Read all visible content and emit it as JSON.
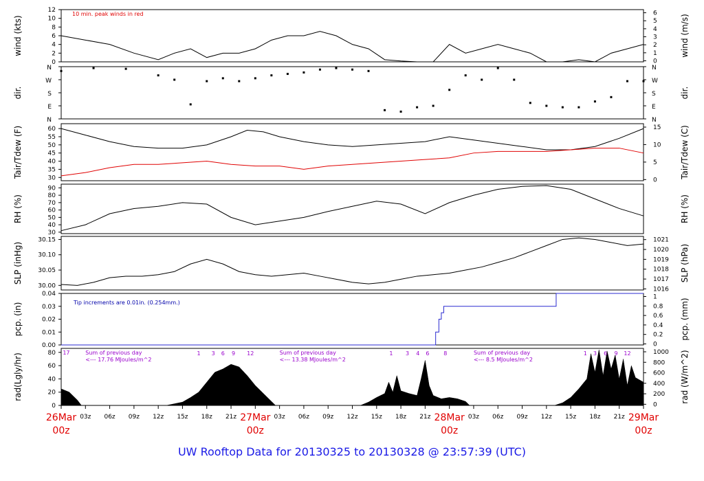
{
  "title": "UW Rooftop Data for 20130325  to  20130328 @ 23:57:39  (UTC)",
  "colors": {
    "day_label": "#e00000",
    "title": "#1a1ae6",
    "annotation": "#9900cc",
    "rain": "#2a2ad0",
    "dew": "#e00000"
  },
  "chart_data": [
    {
      "type": "line",
      "ylabel": "wind (kts)",
      "ylabel_right": "wind (m/s)",
      "note": "10 min. peak winds in red",
      "yticks": [
        0,
        2,
        4,
        6,
        8,
        10,
        12
      ],
      "yticks_right": [
        0,
        1,
        2,
        3,
        4,
        5,
        6
      ],
      "ylim": [
        0,
        12
      ],
      "series": [
        {
          "x": [
            0,
            3,
            6,
            9,
            12,
            14,
            16,
            18,
            20,
            22,
            24,
            26,
            28,
            30,
            32,
            34,
            36,
            38,
            40,
            42,
            44,
            46,
            48,
            50,
            52,
            54,
            56,
            58,
            60,
            62,
            64,
            66,
            68,
            70,
            72
          ],
          "values": [
            6,
            5,
            4,
            2,
            0.5,
            2,
            3,
            1,
            2,
            2,
            3,
            5,
            6,
            6,
            7,
            6,
            4,
            3,
            0.5,
            0.2,
            0,
            0,
            4,
            2,
            3,
            4,
            3,
            2,
            0,
            0,
            0.5,
            0,
            2,
            3,
            4
          ]
        }
      ]
    },
    {
      "type": "scatter",
      "ylabel": "dir.",
      "ylabel_right": "dir.",
      "yticks": [
        "N",
        "E",
        "S",
        "W",
        "N"
      ],
      "ylim": [
        0,
        360
      ],
      "series": [
        {
          "x": [
            0,
            4,
            8,
            12,
            14,
            16,
            18,
            20,
            22,
            24,
            26,
            28,
            30,
            32,
            34,
            36,
            38,
            40,
            42,
            44,
            46,
            48,
            50,
            52,
            54,
            56,
            58,
            60,
            62,
            64,
            66,
            68,
            70,
            72
          ],
          "values": [
            330,
            350,
            345,
            300,
            270,
            100,
            260,
            280,
            260,
            280,
            300,
            310,
            320,
            340,
            350,
            340,
            330,
            60,
            50,
            80,
            90,
            200,
            300,
            270,
            350,
            270,
            110,
            90,
            80,
            80,
            120,
            150,
            260,
            260
          ]
        }
      ]
    },
    {
      "type": "line",
      "ylabel": "Tair/Tdew (F)",
      "ylabel_right": "Tair/Tdew (C)",
      "yticks": [
        30,
        35,
        40,
        45,
        50,
        55,
        60
      ],
      "yticks_right": [
        0,
        5,
        10,
        15
      ],
      "ylim": [
        28,
        63
      ],
      "series": [
        {
          "name": "Tair",
          "x": [
            0,
            3,
            6,
            9,
            12,
            15,
            18,
            21,
            23,
            25,
            27,
            30,
            33,
            36,
            39,
            42,
            45,
            48,
            51,
            54,
            57,
            60,
            63,
            66,
            69,
            72
          ],
          "values": [
            60,
            56,
            52,
            49,
            48,
            48,
            50,
            55,
            59,
            58,
            55,
            52,
            50,
            49,
            50,
            51,
            52,
            55,
            53,
            51,
            49,
            47,
            47,
            49,
            54,
            60
          ]
        },
        {
          "name": "Tdew",
          "x": [
            0,
            3,
            6,
            9,
            12,
            15,
            18,
            21,
            24,
            27,
            30,
            33,
            36,
            39,
            42,
            45,
            48,
            51,
            54,
            57,
            60,
            63,
            66,
            69,
            72
          ],
          "values": [
            31,
            33,
            36,
            38,
            38,
            39,
            40,
            38,
            37,
            37,
            35,
            37,
            38,
            39,
            40,
            41,
            42,
            45,
            46,
            46,
            46,
            47,
            48,
            48,
            45
          ]
        }
      ]
    },
    {
      "type": "line",
      "ylabel": "RH (%)",
      "ylabel_right": "RH (%)",
      "yticks": [
        30,
        40,
        50,
        60,
        70,
        80,
        90
      ],
      "ylim": [
        28,
        95
      ],
      "series": [
        {
          "x": [
            0,
            3,
            6,
            9,
            12,
            15,
            18,
            21,
            24,
            27,
            30,
            33,
            36,
            39,
            42,
            45,
            48,
            51,
            54,
            57,
            60,
            63,
            66,
            69,
            72
          ],
          "values": [
            32,
            40,
            55,
            62,
            65,
            70,
            68,
            50,
            40,
            45,
            50,
            58,
            65,
            72,
            68,
            55,
            70,
            80,
            88,
            92,
            93,
            88,
            75,
            62,
            52
          ]
        }
      ]
    },
    {
      "type": "line",
      "ylabel": "SLP (inHg)",
      "ylabel_right": "SLP (hPa)",
      "yticks": [
        30.0,
        30.05,
        30.1,
        30.15
      ],
      "ytick_labels": [
        "30.00",
        "30.05",
        "30.10",
        "30.15"
      ],
      "yticks_right": [
        "1016",
        "1017",
        "1018",
        "1019",
        "1020",
        "1021"
      ],
      "ylim": [
        29.985,
        30.16
      ],
      "series": [
        {
          "x": [
            0,
            2,
            4,
            6,
            8,
            10,
            12,
            14,
            16,
            18,
            20,
            22,
            24,
            26,
            28,
            30,
            32,
            34,
            36,
            38,
            40,
            42,
            44,
            46,
            48,
            50,
            52,
            54,
            56,
            58,
            60,
            62,
            64,
            66,
            68,
            70,
            72
          ],
          "values": [
            30.003,
            30.0,
            30.01,
            30.025,
            30.03,
            30.03,
            30.035,
            30.045,
            30.07,
            30.085,
            30.07,
            30.045,
            30.035,
            30.03,
            30.035,
            30.04,
            30.03,
            30.02,
            30.01,
            30.005,
            30.01,
            30.02,
            30.03,
            30.035,
            30.04,
            30.05,
            30.06,
            30.075,
            30.09,
            30.11,
            30.13,
            30.15,
            30.155,
            30.15,
            30.14,
            30.13,
            30.135
          ]
        }
      ]
    },
    {
      "type": "line",
      "ylabel": "pcp. (in)",
      "ylabel_right": "pcp. (mm)",
      "note": "Tip increments are 0.01in. (0.254mm.)",
      "yticks": [
        0,
        0.01,
        0.02,
        0.03,
        0.04
      ],
      "ytick_labels": [
        "0.00",
        "0.01",
        "0.02",
        "0.03",
        "0.04"
      ],
      "yticks_right": [
        "0",
        "0.2",
        "0.4",
        "0.6",
        "0.8",
        "1"
      ],
      "ylim": [
        0,
        0.04
      ],
      "series": [
        {
          "x": [
            0,
            46.3,
            46.3,
            46.7,
            46.7,
            47.0,
            47.0,
            47.3,
            47.3,
            61.2,
            61.2,
            72
          ],
          "values": [
            0,
            0,
            0.01,
            0.01,
            0.02,
            0.02,
            0.025,
            0.025,
            0.03,
            0.03,
            0.04,
            0.04
          ]
        }
      ]
    },
    {
      "type": "area",
      "ylabel": "rad(Lgly/hr)",
      "ylabel_right": "rad (W/m^2)",
      "yticks": [
        0,
        20,
        40,
        60,
        80
      ],
      "yticks_right": [
        0,
        200,
        400,
        600,
        800,
        1000
      ],
      "ylim": [
        0,
        86
      ],
      "annotations": [
        {
          "x": 0.2,
          "text": "17"
        },
        {
          "x": 3,
          "text": "Sum of previous day"
        },
        {
          "x": 3,
          "text": "<--- 17.76 MJoules/m^2"
        },
        {
          "x": 27,
          "text": "Sum of previous day"
        },
        {
          "x": 27,
          "text": "<--- 13.38 MJoules/m^2"
        },
        {
          "x": 51,
          "text": "Sum of previous day"
        },
        {
          "x": 51,
          "text": "<--- 8.5 MJoules/m^2"
        }
      ],
      "hour_marks": [
        {
          "x": 17,
          "text": "1"
        },
        {
          "x": 18.8,
          "text": "3"
        },
        {
          "x": 20,
          "text": "6"
        },
        {
          "x": 21.3,
          "text": "9"
        },
        {
          "x": 23.4,
          "text": "12"
        },
        {
          "x": 40.8,
          "text": "1"
        },
        {
          "x": 42.8,
          "text": "3"
        },
        {
          "x": 44.1,
          "text": "4"
        },
        {
          "x": 45.3,
          "text": "6"
        },
        {
          "x": 47.5,
          "text": "8"
        },
        {
          "x": 64.8,
          "text": "1"
        },
        {
          "x": 66,
          "text": "3"
        },
        {
          "x": 67.3,
          "text": "6"
        },
        {
          "x": 68.6,
          "text": "9"
        },
        {
          "x": 70,
          "text": "12"
        }
      ],
      "series": [
        {
          "x": [
            0,
            1,
            2,
            2.5,
            13,
            15,
            16,
            17,
            18,
            19,
            20,
            21,
            22,
            23,
            24,
            25,
            26,
            26.5,
            37,
            38,
            39,
            40,
            40.5,
            41,
            41.5,
            42,
            43,
            44,
            44.5,
            45,
            45.5,
            46,
            47,
            48,
            49,
            50,
            50.5,
            61,
            62,
            63,
            64,
            65,
            65.5,
            66,
            66.5,
            67,
            67.5,
            68,
            68.5,
            69,
            69.5,
            70,
            70.5,
            71,
            72
          ],
          "values": [
            25,
            20,
            8,
            0,
            0,
            5,
            12,
            20,
            35,
            50,
            55,
            62,
            58,
            45,
            30,
            18,
            6,
            0,
            0,
            5,
            12,
            18,
            35,
            20,
            45,
            22,
            18,
            15,
            40,
            68,
            30,
            15,
            10,
            12,
            10,
            6,
            0,
            0,
            4,
            12,
            25,
            40,
            78,
            50,
            84,
            45,
            82,
            55,
            76,
            40,
            70,
            30,
            60,
            42,
            35
          ]
        }
      ]
    },
    {
      "type": "axis",
      "x_ticks": [
        {
          "x": 0,
          "text": "26Mar",
          "text2": "00z",
          "day": true
        },
        {
          "x": 3,
          "text": "03z"
        },
        {
          "x": 6,
          "text": "06z"
        },
        {
          "x": 9,
          "text": "09z"
        },
        {
          "x": 12,
          "text": "12z"
        },
        {
          "x": 15,
          "text": "15z"
        },
        {
          "x": 18,
          "text": "18z"
        },
        {
          "x": 21,
          "text": "21z"
        },
        {
          "x": 24,
          "text": "27Mar",
          "text2": "00z",
          "day": true
        },
        {
          "x": 27,
          "text": "03z"
        },
        {
          "x": 30,
          "text": "06z"
        },
        {
          "x": 33,
          "text": "09z"
        },
        {
          "x": 36,
          "text": "12z"
        },
        {
          "x": 39,
          "text": "15z"
        },
        {
          "x": 42,
          "text": "18z"
        },
        {
          "x": 45,
          "text": "21z"
        },
        {
          "x": 48,
          "text": "28Mar",
          "text2": "00z",
          "day": true
        },
        {
          "x": 51,
          "text": "03z"
        },
        {
          "x": 54,
          "text": "06z"
        },
        {
          "x": 57,
          "text": "09z"
        },
        {
          "x": 60,
          "text": "12z"
        },
        {
          "x": 63,
          "text": "15z"
        },
        {
          "x": 66,
          "text": "18z"
        },
        {
          "x": 69,
          "text": "21z"
        },
        {
          "x": 72,
          "text": "29Mar",
          "text2": "00z",
          "day": true
        }
      ]
    }
  ]
}
